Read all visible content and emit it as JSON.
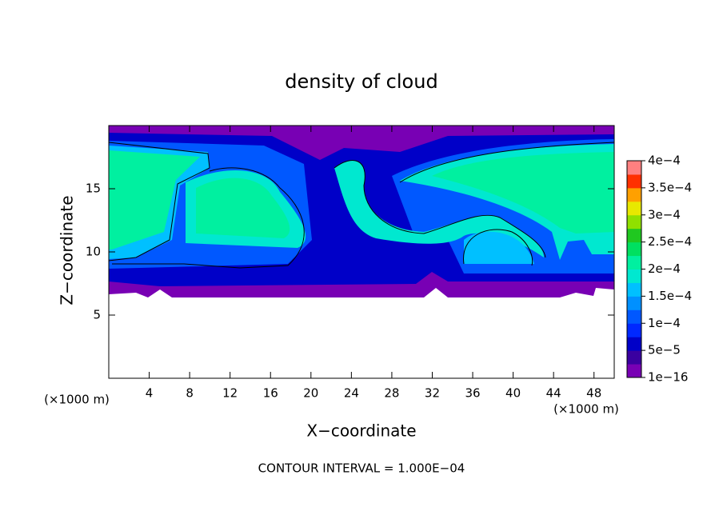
{
  "chart_data": {
    "type": "contour",
    "title": "density of cloud",
    "xlabel": "X−coordinate",
    "ylabel": "Z−coordinate",
    "xunit": "(×1000 m)",
    "yunit": "(×1000 m)",
    "annotation": "CONTOUR INTERVAL = 1.000E−04",
    "xlim": [
      0,
      50
    ],
    "xticks": [
      4,
      8,
      12,
      16,
      20,
      24,
      28,
      32,
      36,
      40,
      44,
      48
    ],
    "ylim": [
      0,
      20
    ],
    "yticks": [
      5,
      10,
      15
    ],
    "colorbar": {
      "lim": [
        1e-16,
        0.0004
      ],
      "ticks": [
        {
          "value": 1e-16,
          "label": "1e−16"
        },
        {
          "value": 5e-05,
          "label": "5e−5"
        },
        {
          "value": 0.0001,
          "label": "1e−4"
        },
        {
          "value": 0.00015,
          "label": "1.5e−4"
        },
        {
          "value": 0.0002,
          "label": "2e−4"
        },
        {
          "value": 0.00025,
          "label": "2.5e−4"
        },
        {
          "value": 0.0003,
          "label": "3e−4"
        },
        {
          "value": 0.00035,
          "label": "3.5e−4"
        },
        {
          "value": 0.0004,
          "label": "4e−4"
        }
      ],
      "colors": [
        "#7800b4",
        "#3a00a0",
        "#0000c8",
        "#0028ff",
        "#0058ff",
        "#0090ff",
        "#00c0ff",
        "#00e8d0",
        "#00f0a0",
        "#00e060",
        "#20c820",
        "#90e000",
        "#e8e800",
        "#ffa000",
        "#ff3000",
        "#ff8080"
      ]
    }
  }
}
